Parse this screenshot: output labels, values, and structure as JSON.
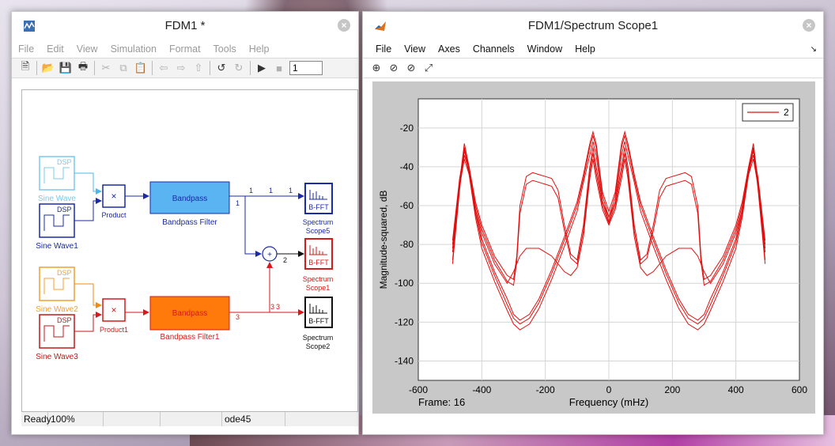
{
  "model_window": {
    "title": "FDM1 *",
    "menu": [
      "File",
      "Edit",
      "View",
      "Simulation",
      "Format",
      "Tools",
      "Help"
    ],
    "stop_time": "1",
    "status": {
      "state": "Ready",
      "zoom": "100%",
      "cell3": "",
      "cell4": "",
      "solver": "ode45"
    },
    "blocks": {
      "sine_wave": "Sine Wave",
      "sine_wave1": "Sine Wave1",
      "sine_wave2": "Sine Wave2",
      "sine_wave3": "Sine Wave3",
      "dsp": "DSP",
      "product": "Product",
      "product1": "Product1",
      "bandpass_label": "Bandpass",
      "bandpass_filter": "Bandpass Filter",
      "bandpass_filter1": "Bandpass Filter1",
      "bfft": "B-FFT",
      "scope5_line1": "Spectrum",
      "scope5_line2": "Scope5",
      "scope1_line1": "Spectrum",
      "scope1_line2": "Scope1",
      "scope2_line1": "Spectrum",
      "scope2_line2": "Scope2",
      "sig1": "1",
      "sig2": "2",
      "sig3": "3"
    }
  },
  "scope_window": {
    "title": "FDM1/Spectrum Scope1",
    "menu": [
      "File",
      "View",
      "Axes",
      "Channels",
      "Window",
      "Help"
    ],
    "frame_label": "Frame: 16",
    "colors": {
      "trace": "#e01010",
      "plot_bg": "#c8c8c8"
    }
  },
  "chart_data": {
    "type": "line",
    "xlabel": "Frequency (mHz)",
    "ylabel": "Magnitude-squared, dB",
    "xlim": [
      -600,
      600
    ],
    "ylim": [
      -150,
      -5
    ],
    "xticks": [
      -600,
      -400,
      -200,
      0,
      200,
      400,
      600
    ],
    "yticks": [
      -20,
      -40,
      -60,
      -80,
      -100,
      -120,
      -140
    ],
    "grid": true,
    "legend": {
      "position": "top-right",
      "entries": [
        "2"
      ]
    },
    "series": [
      {
        "x": [
          -492,
          -470,
          -455,
          -440,
          -420,
          -400,
          -360,
          -320,
          -300,
          -280,
          -250,
          -220,
          -180,
          -140,
          -100,
          -80,
          -60,
          -50,
          -40,
          -20,
          0,
          20,
          40,
          50,
          60,
          80,
          100,
          140,
          180,
          220,
          250,
          280,
          300,
          320,
          360,
          400,
          420,
          440,
          455,
          470,
          492
        ],
        "y": [
          -88,
          -50,
          -30,
          -42,
          -64,
          -79,
          -96,
          -111,
          -118,
          -121,
          -118,
          -110,
          -95,
          -78,
          -60,
          -46,
          -30,
          -24,
          -30,
          -55,
          -66,
          -55,
          -30,
          -24,
          -30,
          -46,
          -60,
          -78,
          -95,
          -110,
          -118,
          -121,
          -118,
          -111,
          -96,
          -79,
          -64,
          -42,
          -30,
          -50,
          -88
        ]
      },
      {
        "x": [
          -492,
          -470,
          -455,
          -440,
          -420,
          -400,
          -360,
          -320,
          -300,
          -280,
          -250,
          -220,
          -180,
          -140,
          -100,
          -80,
          -60,
          -50,
          -40,
          -20,
          0,
          20,
          40,
          50,
          60,
          80,
          100,
          140,
          180,
          220,
          250,
          280,
          300,
          320,
          360,
          400,
          420,
          440,
          455,
          470,
          492
        ],
        "y": [
          -82,
          -48,
          -28,
          -40,
          -62,
          -77,
          -94,
          -108,
          -116,
          -119,
          -116,
          -108,
          -93,
          -76,
          -58,
          -44,
          -28,
          -22,
          -28,
          -53,
          -63,
          -53,
          -28,
          -22,
          -28,
          -44,
          -58,
          -76,
          -93,
          -108,
          -116,
          -119,
          -116,
          -108,
          -94,
          -77,
          -62,
          -40,
          -28,
          -48,
          -82
        ]
      },
      {
        "x": [
          -492,
          -470,
          -455,
          -440,
          -420,
          -400,
          -360,
          -320,
          -300,
          -280,
          -250,
          -220,
          -180,
          -140,
          -100,
          -80,
          -60,
          -50,
          -40,
          -20,
          0,
          20,
          40,
          50,
          60,
          80,
          100,
          140,
          180,
          220,
          250,
          280,
          300,
          320,
          360,
          400,
          420,
          440,
          455,
          470,
          492
        ],
        "y": [
          -90,
          -52,
          -31,
          -44,
          -66,
          -82,
          -99,
          -114,
          -121,
          -124,
          -121,
          -113,
          -98,
          -81,
          -63,
          -48,
          -34,
          -27,
          -34,
          -58,
          -68,
          -58,
          -34,
          -27,
          -34,
          -48,
          -63,
          -81,
          -98,
          -113,
          -121,
          -124,
          -121,
          -114,
          -99,
          -82,
          -66,
          -44,
          -31,
          -52,
          -90
        ]
      },
      {
        "x": [
          -492,
          -470,
          -455,
          -440,
          -420,
          -400,
          -360,
          -320,
          -300,
          -290,
          -280,
          -260,
          -240,
          -220,
          -200,
          -180,
          -160,
          -140,
          -120,
          -100,
          -80,
          -60,
          -50,
          -40,
          -20,
          0,
          20,
          40,
          50,
          60,
          80,
          100,
          120,
          140,
          160,
          180,
          200,
          220,
          240,
          260,
          280,
          290,
          300,
          320,
          360,
          400,
          420,
          440,
          455,
          470,
          492
        ],
        "y": [
          -78,
          -46,
          -32,
          -40,
          -58,
          -70,
          -86,
          -96,
          -98,
          -86,
          -60,
          -45,
          -43,
          -44,
          -45,
          -46,
          -52,
          -70,
          -85,
          -88,
          -70,
          -40,
          -30,
          -40,
          -58,
          -66,
          -58,
          -40,
          -30,
          -40,
          -70,
          -88,
          -85,
          -70,
          -52,
          -46,
          -45,
          -44,
          -43,
          -45,
          -60,
          -86,
          -98,
          -96,
          -86,
          -70,
          -58,
          -40,
          -32,
          -46,
          -78
        ]
      },
      {
        "x": [
          -492,
          -470,
          -455,
          -440,
          -420,
          -400,
          -360,
          -320,
          -300,
          -290,
          -280,
          -260,
          -240,
          -220,
          -200,
          -180,
          -160,
          -140,
          -120,
          -100,
          -80,
          -60,
          -50,
          -40,
          -20,
          0,
          20,
          40,
          50,
          60,
          80,
          100,
          120,
          140,
          160,
          180,
          200,
          220,
          240,
          260,
          280,
          290,
          300,
          320,
          360,
          400,
          420,
          440,
          455,
          470,
          492
        ],
        "y": [
          -80,
          -48,
          -34,
          -42,
          -60,
          -72,
          -88,
          -99,
          -101,
          -89,
          -64,
          -49,
          -47,
          -48,
          -49,
          -50,
          -56,
          -73,
          -87,
          -90,
          -73,
          -43,
          -33,
          -43,
          -60,
          -69,
          -60,
          -43,
          -33,
          -43,
          -73,
          -90,
          -87,
          -73,
          -56,
          -50,
          -49,
          -48,
          -47,
          -49,
          -64,
          -89,
          -101,
          -99,
          -88,
          -72,
          -60,
          -42,
          -34,
          -48,
          -80
        ]
      },
      {
        "x": [
          -492,
          -470,
          -455,
          -440,
          -420,
          -400,
          -360,
          -320,
          -300,
          -280,
          -260,
          -220,
          -180,
          -140,
          -120,
          -100,
          -80,
          -60,
          -50,
          -40,
          -20,
          0,
          20,
          40,
          50,
          60,
          80,
          100,
          120,
          140,
          180,
          220,
          260,
          280,
          300,
          320,
          360,
          400,
          420,
          440,
          455,
          470,
          492
        ],
        "y": [
          -84,
          -50,
          -36,
          -44,
          -62,
          -74,
          -90,
          -100,
          -94,
          -86,
          -82,
          -82,
          -86,
          -94,
          -96,
          -92,
          -76,
          -46,
          -36,
          -46,
          -62,
          -70,
          -62,
          -46,
          -36,
          -46,
          -76,
          -92,
          -96,
          -94,
          -86,
          -82,
          -82,
          -86,
          -94,
          -100,
          -90,
          -74,
          -62,
          -44,
          -36,
          -50,
          -84
        ]
      }
    ]
  }
}
